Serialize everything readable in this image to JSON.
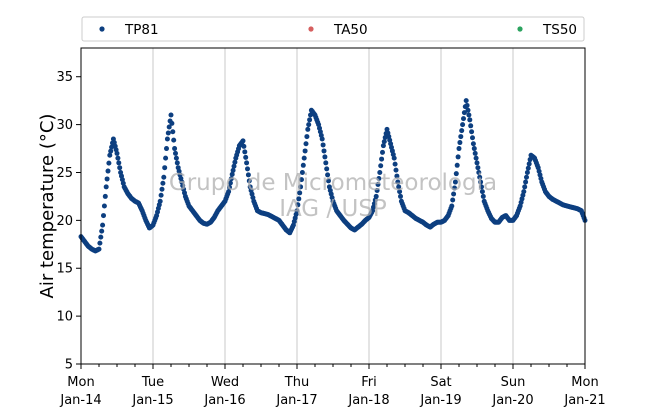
{
  "chart_data": {
    "type": "scatter",
    "ylabel": "Air temperature (°C)",
    "ylim": [
      5,
      38
    ],
    "yticks": [
      5,
      10,
      15,
      20,
      25,
      30,
      35
    ],
    "xlim": [
      "2019-01-14",
      "2019-01-21"
    ],
    "xticks": [
      {
        "day": "Mon",
        "date": "Jan-14"
      },
      {
        "day": "Tue",
        "date": "Jan-15"
      },
      {
        "day": "Wed",
        "date": "Jan-16"
      },
      {
        "day": "Thu",
        "date": "Jan-17"
      },
      {
        "day": "Fri",
        "date": "Jan-18"
      },
      {
        "day": "Sat",
        "date": "Jan-19"
      },
      {
        "day": "Sun",
        "date": "Jan-20"
      },
      {
        "day": "Mon",
        "date": "Jan-21"
      }
    ],
    "grid": "vertical",
    "legend_position": "top",
    "watermark": [
      "Grupo de Micrometeorologia",
      "IAG / USP"
    ],
    "series": [
      {
        "name": "TP81",
        "color": "#0d3f80",
        "points": [
          [
            0.0,
            18.3
          ],
          [
            0.05,
            17.8
          ],
          [
            0.1,
            17.3
          ],
          [
            0.15,
            17.0
          ],
          [
            0.2,
            16.8
          ],
          [
            0.25,
            17.0
          ],
          [
            0.3,
            19.5
          ],
          [
            0.35,
            23.5
          ],
          [
            0.4,
            26.8
          ],
          [
            0.45,
            28.5
          ],
          [
            0.5,
            27.0
          ],
          [
            0.55,
            25.0
          ],
          [
            0.6,
            23.5
          ],
          [
            0.65,
            22.8
          ],
          [
            0.7,
            22.3
          ],
          [
            0.75,
            22.0
          ],
          [
            0.8,
            21.8
          ],
          [
            0.85,
            21.0
          ],
          [
            0.9,
            20.0
          ],
          [
            0.95,
            19.2
          ],
          [
            1.0,
            19.5
          ],
          [
            1.05,
            20.5
          ],
          [
            1.1,
            22.0
          ],
          [
            1.15,
            24.5
          ],
          [
            1.2,
            28.5
          ],
          [
            1.25,
            31.0
          ],
          [
            1.3,
            27.5
          ],
          [
            1.35,
            25.5
          ],
          [
            1.4,
            24.0
          ],
          [
            1.45,
            22.5
          ],
          [
            1.5,
            21.5
          ],
          [
            1.55,
            21.0
          ],
          [
            1.6,
            20.5
          ],
          [
            1.65,
            20.0
          ],
          [
            1.7,
            19.7
          ],
          [
            1.75,
            19.6
          ],
          [
            1.8,
            19.8
          ],
          [
            1.85,
            20.3
          ],
          [
            1.9,
            21.0
          ],
          [
            1.95,
            21.5
          ],
          [
            2.0,
            22.0
          ],
          [
            2.05,
            23.0
          ],
          [
            2.1,
            24.8
          ],
          [
            2.15,
            26.5
          ],
          [
            2.2,
            27.8
          ],
          [
            2.25,
            28.3
          ],
          [
            2.3,
            26.0
          ],
          [
            2.35,
            23.5
          ],
          [
            2.4,
            22.0
          ],
          [
            2.45,
            21.0
          ],
          [
            2.5,
            20.8
          ],
          [
            2.55,
            20.7
          ],
          [
            2.6,
            20.6
          ],
          [
            2.65,
            20.4
          ],
          [
            2.7,
            20.2
          ],
          [
            2.75,
            20.0
          ],
          [
            2.8,
            19.5
          ],
          [
            2.85,
            19.0
          ],
          [
            2.9,
            18.7
          ],
          [
            2.95,
            19.5
          ],
          [
            3.0,
            21.0
          ],
          [
            3.05,
            23.5
          ],
          [
            3.1,
            26.5
          ],
          [
            3.15,
            29.5
          ],
          [
            3.2,
            31.5
          ],
          [
            3.25,
            31.0
          ],
          [
            3.3,
            30.0
          ],
          [
            3.35,
            28.5
          ],
          [
            3.4,
            26.0
          ],
          [
            3.45,
            23.5
          ],
          [
            3.5,
            22.0
          ],
          [
            3.55,
            21.0
          ],
          [
            3.6,
            20.5
          ],
          [
            3.65,
            20.0
          ],
          [
            3.7,
            19.6
          ],
          [
            3.75,
            19.2
          ],
          [
            3.8,
            19.0
          ],
          [
            3.85,
            19.3
          ],
          [
            3.9,
            19.6
          ],
          [
            3.95,
            20.0
          ],
          [
            4.0,
            20.3
          ],
          [
            4.05,
            21.0
          ],
          [
            4.1,
            22.5
          ],
          [
            4.15,
            25.0
          ],
          [
            4.2,
            27.8
          ],
          [
            4.25,
            29.5
          ],
          [
            4.3,
            28.0
          ],
          [
            4.35,
            26.5
          ],
          [
            4.4,
            24.0
          ],
          [
            4.45,
            22.0
          ],
          [
            4.5,
            21.0
          ],
          [
            4.55,
            20.8
          ],
          [
            4.6,
            20.5
          ],
          [
            4.65,
            20.2
          ],
          [
            4.7,
            20.0
          ],
          [
            4.75,
            19.8
          ],
          [
            4.8,
            19.5
          ],
          [
            4.85,
            19.3
          ],
          [
            4.9,
            19.6
          ],
          [
            4.95,
            19.8
          ],
          [
            5.0,
            19.8
          ],
          [
            5.05,
            20.0
          ],
          [
            5.1,
            20.5
          ],
          [
            5.15,
            21.5
          ],
          [
            5.2,
            24.0
          ],
          [
            5.25,
            27.5
          ],
          [
            5.3,
            30.0
          ],
          [
            5.35,
            32.5
          ],
          [
            5.4,
            30.5
          ],
          [
            5.45,
            28.0
          ],
          [
            5.5,
            26.0
          ],
          [
            5.55,
            24.0
          ],
          [
            5.6,
            22.0
          ],
          [
            5.65,
            21.0
          ],
          [
            5.7,
            20.2
          ],
          [
            5.75,
            19.8
          ],
          [
            5.8,
            19.8
          ],
          [
            5.85,
            20.3
          ],
          [
            5.9,
            20.5
          ],
          [
            5.95,
            20.0
          ],
          [
            6.0,
            20.0
          ],
          [
            6.05,
            20.5
          ],
          [
            6.1,
            21.5
          ],
          [
            6.15,
            23.0
          ],
          [
            6.2,
            25.0
          ],
          [
            6.25,
            26.8
          ],
          [
            6.3,
            26.5
          ],
          [
            6.35,
            25.5
          ],
          [
            6.4,
            24.0
          ],
          [
            6.45,
            23.0
          ],
          [
            6.5,
            22.5
          ],
          [
            6.55,
            22.2
          ],
          [
            6.6,
            22.0
          ],
          [
            6.65,
            21.8
          ],
          [
            6.7,
            21.6
          ],
          [
            6.75,
            21.5
          ],
          [
            6.8,
            21.4
          ],
          [
            6.85,
            21.3
          ],
          [
            6.9,
            21.2
          ],
          [
            6.95,
            21.0
          ],
          [
            7.0,
            20.0
          ]
        ]
      },
      {
        "name": "TA50",
        "color": "#d65f5f",
        "points": []
      },
      {
        "name": "TS50",
        "color": "#2ba35f",
        "points": []
      }
    ]
  }
}
